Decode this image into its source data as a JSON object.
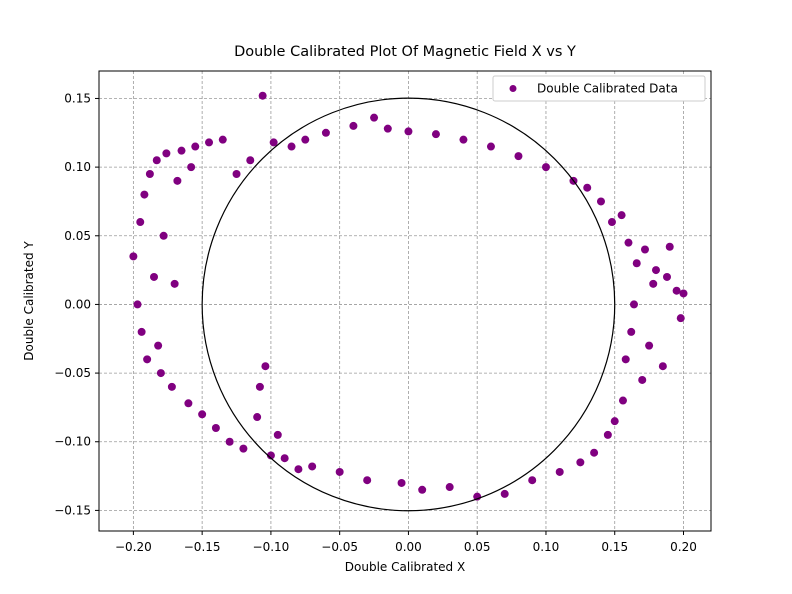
{
  "chart_data": {
    "type": "scatter",
    "title": "Double Calibrated Plot Of Magnetic Field X vs Y",
    "xlabel": "Double Calibrated X",
    "ylabel": "Double Calibrated Y",
    "xlim": [
      -0.225,
      0.22
    ],
    "ylim": [
      -0.165,
      0.17
    ],
    "x_ticks": [
      -0.2,
      -0.15,
      -0.1,
      -0.05,
      0.0,
      0.05,
      0.1,
      0.15,
      0.2
    ],
    "x_tick_labels": [
      "−0.20",
      "−0.15",
      "−0.10",
      "−0.05",
      "0.00",
      "0.05",
      "0.10",
      "0.15",
      "0.20"
    ],
    "y_ticks": [
      -0.15,
      -0.1,
      -0.05,
      0.0,
      0.05,
      0.1,
      0.15
    ],
    "y_tick_labels": [
      "−0.15",
      "−0.10",
      "−0.05",
      "0.00",
      "0.05",
      "0.10",
      "0.15"
    ],
    "grid": true,
    "legend_position": "top-right",
    "series": [
      {
        "name": "Double Calibrated Data",
        "color": "#800080",
        "points": [
          [
            -0.2,
            0.035
          ],
          [
            -0.197,
            0.0
          ],
          [
            -0.195,
            0.06
          ],
          [
            -0.194,
            -0.02
          ],
          [
            -0.192,
            0.08
          ],
          [
            -0.19,
            -0.04
          ],
          [
            -0.188,
            0.095
          ],
          [
            -0.185,
            0.02
          ],
          [
            -0.183,
            0.105
          ],
          [
            -0.182,
            -0.03
          ],
          [
            -0.18,
            -0.05
          ],
          [
            -0.178,
            0.05
          ],
          [
            -0.176,
            0.11
          ],
          [
            -0.172,
            -0.06
          ],
          [
            -0.17,
            0.015
          ],
          [
            -0.168,
            0.09
          ],
          [
            -0.165,
            0.112
          ],
          [
            -0.16,
            -0.072
          ],
          [
            -0.158,
            0.1
          ],
          [
            -0.155,
            0.115
          ],
          [
            -0.15,
            -0.08
          ],
          [
            -0.145,
            0.118
          ],
          [
            -0.14,
            -0.09
          ],
          [
            -0.135,
            0.12
          ],
          [
            -0.13,
            -0.1
          ],
          [
            -0.125,
            0.095
          ],
          [
            -0.12,
            -0.105
          ],
          [
            -0.115,
            0.105
          ],
          [
            -0.11,
            -0.082
          ],
          [
            -0.108,
            -0.06
          ],
          [
            -0.106,
            0.152
          ],
          [
            -0.104,
            -0.045
          ],
          [
            -0.1,
            -0.11
          ],
          [
            -0.098,
            0.118
          ],
          [
            -0.095,
            -0.095
          ],
          [
            -0.09,
            -0.112
          ],
          [
            -0.085,
            0.115
          ],
          [
            -0.08,
            -0.12
          ],
          [
            -0.075,
            0.12
          ],
          [
            -0.07,
            -0.118
          ],
          [
            -0.06,
            0.125
          ],
          [
            -0.05,
            -0.122
          ],
          [
            -0.04,
            0.13
          ],
          [
            -0.03,
            -0.128
          ],
          [
            -0.025,
            0.136
          ],
          [
            -0.015,
            0.128
          ],
          [
            -0.005,
            -0.13
          ],
          [
            0.0,
            0.126
          ],
          [
            0.01,
            -0.135
          ],
          [
            0.02,
            0.124
          ],
          [
            0.03,
            -0.133
          ],
          [
            0.04,
            0.12
          ],
          [
            0.05,
            -0.14
          ],
          [
            0.06,
            0.115
          ],
          [
            0.07,
            -0.138
          ],
          [
            0.08,
            0.108
          ],
          [
            0.09,
            -0.128
          ],
          [
            0.1,
            0.1
          ],
          [
            0.11,
            -0.122
          ],
          [
            0.12,
            0.09
          ],
          [
            0.125,
            -0.115
          ],
          [
            0.13,
            0.085
          ],
          [
            0.135,
            -0.108
          ],
          [
            0.14,
            0.075
          ],
          [
            0.145,
            -0.095
          ],
          [
            0.148,
            0.06
          ],
          [
            0.15,
            -0.085
          ],
          [
            0.155,
            0.065
          ],
          [
            0.156,
            -0.07
          ],
          [
            0.158,
            -0.04
          ],
          [
            0.16,
            0.045
          ],
          [
            0.162,
            -0.02
          ],
          [
            0.164,
            0.0
          ],
          [
            0.166,
            0.03
          ],
          [
            0.17,
            -0.055
          ],
          [
            0.172,
            0.04
          ],
          [
            0.175,
            -0.03
          ],
          [
            0.178,
            0.015
          ],
          [
            0.18,
            0.025
          ],
          [
            0.185,
            -0.045
          ],
          [
            0.188,
            0.02
          ],
          [
            0.19,
            0.042
          ],
          [
            0.195,
            0.01
          ],
          [
            0.198,
            -0.01
          ],
          [
            0.2,
            0.008
          ]
        ]
      }
    ],
    "reference_circle": {
      "center": [
        0.0,
        0.0
      ],
      "radius": 0.15,
      "color": "#000000"
    }
  }
}
